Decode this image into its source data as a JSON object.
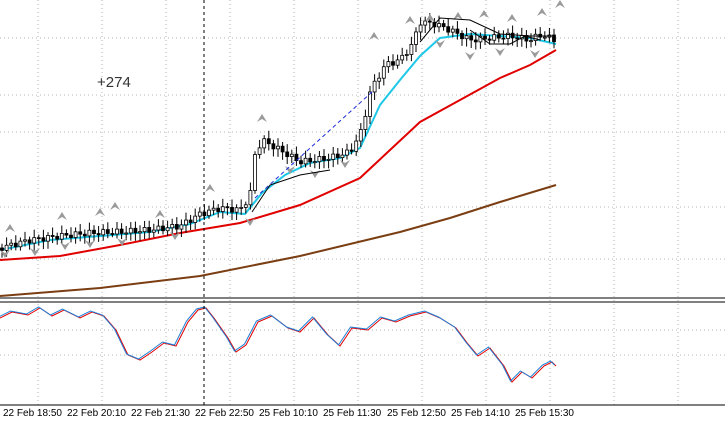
{
  "chart": {
    "price_label": "+274",
    "time_labels": [
      "22 Feb 18:50",
      "22 Feb 20:10",
      "22 Feb 21:30",
      "22 Feb 22:50",
      "25 Feb 10:10",
      "25 Feb 11:30",
      "25 Feb 12:50",
      "25 Feb 14:10",
      "25 Feb 15:30"
    ],
    "colors": {
      "candle": "#000000",
      "fast_ma": "#1ec8e8",
      "mid_ma": "#e00000",
      "slow_ma": "#7a3e12",
      "grid": "#b4b4b4",
      "separator": "#000000",
      "fractal": "#9a9a9a",
      "oscillator_main": "#1e7fd8",
      "oscillator_signal": "#e00000"
    },
    "icons": [
      "fractal-up-arrow-icon",
      "fractal-down-arrow-icon"
    ]
  }
}
